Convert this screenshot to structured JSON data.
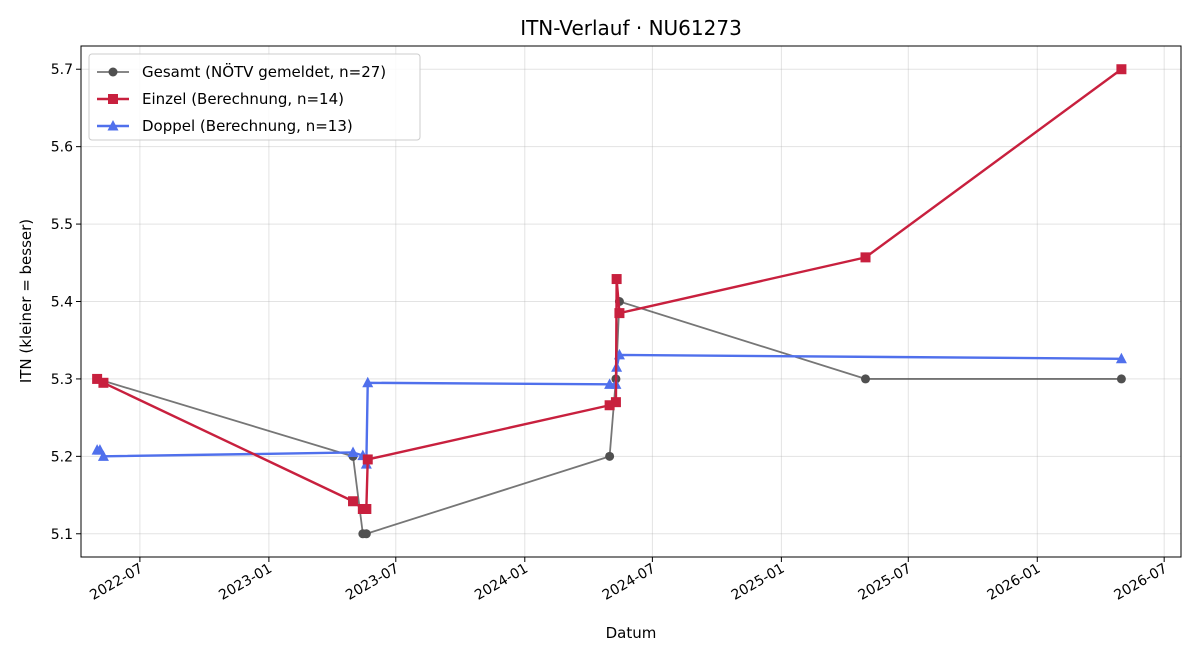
{
  "chart_data": {
    "type": "line",
    "title": "ITN-Verlauf · NU61273",
    "xlabel": "Datum",
    "ylabel": "ITN  (kleiner = besser)",
    "xlim": [
      "2022-04-08",
      "2026-07-25"
    ],
    "ylim": [
      5.07,
      5.73
    ],
    "xticks": [
      "2022-07",
      "2023-01",
      "2023-07",
      "2024-01",
      "2024-07",
      "2025-01",
      "2025-07",
      "2026-01",
      "2026-07"
    ],
    "yticks": [
      5.1,
      5.2,
      5.3,
      5.4,
      5.5,
      5.6,
      5.7
    ],
    "grid": true,
    "legend": "top-left",
    "series": [
      {
        "name": "Gesamt (NÖTV gemeldet, n=27)",
        "color": "#505050",
        "marker": "circle",
        "points": [
          {
            "x": "2022-05-01",
            "y": 5.3
          },
          {
            "x": "2023-05-01",
            "y": 5.2
          },
          {
            "x": "2023-05-15",
            "y": 5.1
          },
          {
            "x": "2023-05-20",
            "y": 5.1
          },
          {
            "x": "2024-05-01",
            "y": 5.2
          },
          {
            "x": "2024-05-10",
            "y": 5.3
          },
          {
            "x": "2024-05-15",
            "y": 5.4
          },
          {
            "x": "2025-05-01",
            "y": 5.3
          },
          {
            "x": "2026-05-01",
            "y": 5.3
          }
        ]
      },
      {
        "name": "Einzel (Berechnung, n=14)",
        "color": "#c8203e",
        "marker": "square",
        "points": [
          {
            "x": "2022-05-01",
            "y": 5.3
          },
          {
            "x": "2022-05-10",
            "y": 5.295
          },
          {
            "x": "2023-05-01",
            "y": 5.142
          },
          {
            "x": "2023-05-15",
            "y": 5.132
          },
          {
            "x": "2023-05-20",
            "y": 5.132
          },
          {
            "x": "2023-05-22",
            "y": 5.196
          },
          {
            "x": "2024-05-01",
            "y": 5.266
          },
          {
            "x": "2024-05-10",
            "y": 5.27
          },
          {
            "x": "2024-05-11",
            "y": 5.429
          },
          {
            "x": "2024-05-15",
            "y": 5.385
          },
          {
            "x": "2025-05-01",
            "y": 5.457
          },
          {
            "x": "2026-05-01",
            "y": 5.7
          }
        ]
      },
      {
        "name": "Doppel (Berechnung, n=13)",
        "color": "#5070ec",
        "marker": "triangle",
        "points": [
          {
            "x": "2022-05-01",
            "y": 5.208
          },
          {
            "x": "2022-05-05",
            "y": 5.208
          },
          {
            "x": "2022-05-10",
            "y": 5.2
          },
          {
            "x": "2023-05-01",
            "y": 5.205
          },
          {
            "x": "2023-05-15",
            "y": 5.201
          },
          {
            "x": "2023-05-20",
            "y": 5.19
          },
          {
            "x": "2023-05-22",
            "y": 5.295
          },
          {
            "x": "2024-05-01",
            "y": 5.293
          },
          {
            "x": "2024-05-10",
            "y": 5.293
          },
          {
            "x": "2024-05-11",
            "y": 5.315
          },
          {
            "x": "2024-05-15",
            "y": 5.331
          },
          {
            "x": "2026-05-01",
            "y": 5.326
          }
        ]
      }
    ]
  }
}
